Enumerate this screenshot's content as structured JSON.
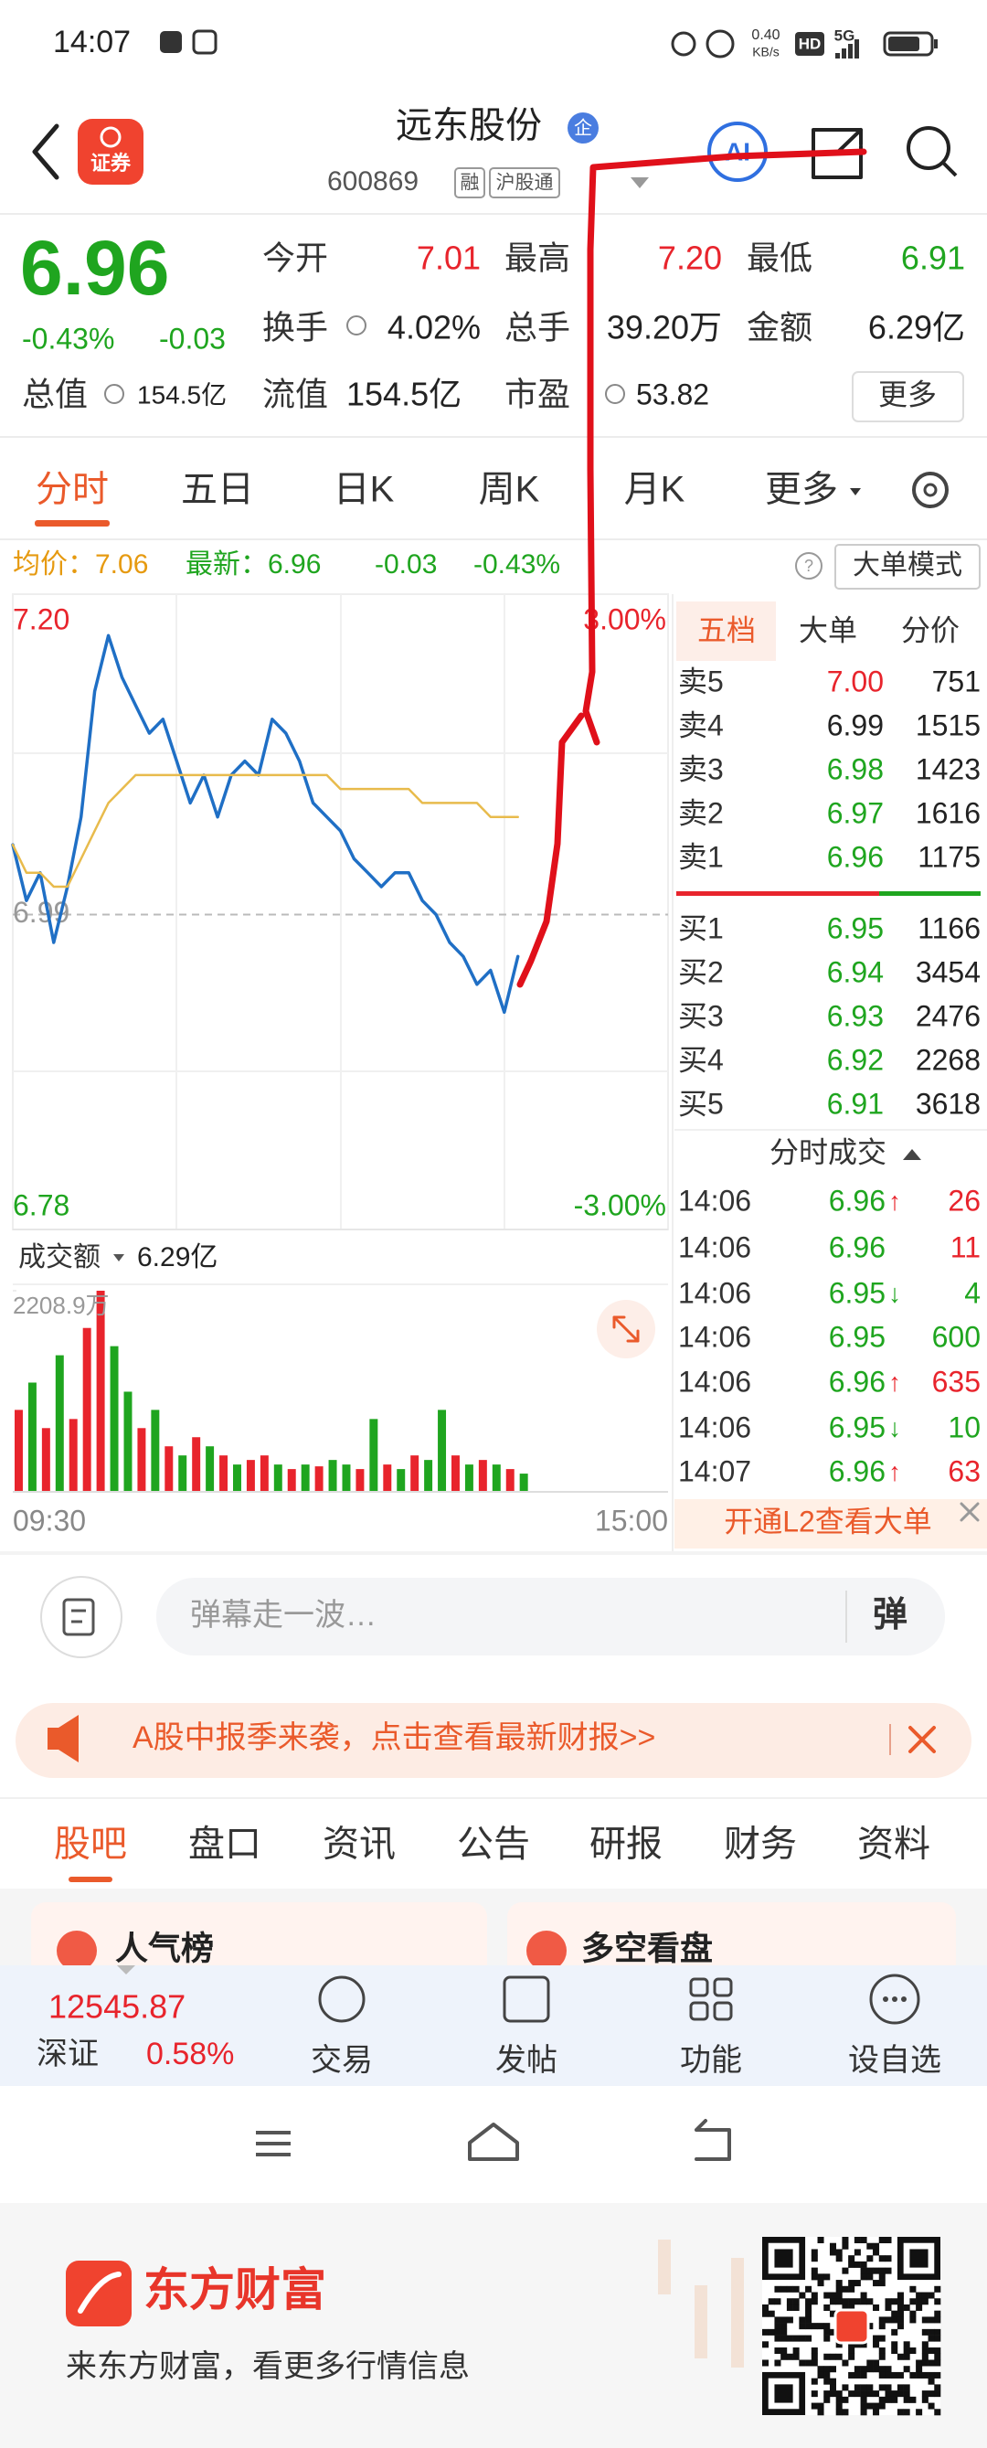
{
  "status_bar": {
    "time": "14:07",
    "speed_value": "0.40",
    "speed_unit": "KB/s",
    "hd": "HD",
    "network": "5G"
  },
  "header": {
    "logo_text": "证券",
    "title": "远东股份",
    "badge": "企",
    "code": "600869",
    "tags": [
      "融",
      "沪股通"
    ]
  },
  "quote": {
    "price": "6.96",
    "change_pct": "-0.43%",
    "change": "-0.03",
    "stats": [
      {
        "label": "今开",
        "value": "7.01"
      },
      {
        "label": "最高",
        "value": "7.20"
      },
      {
        "label": "最低",
        "value": "6.91"
      },
      {
        "label": "换手",
        "value": "4.02%"
      },
      {
        "label": "总手",
        "value": "39.20万"
      },
      {
        "label": "金额",
        "value": "6.29亿"
      },
      {
        "label": "总值",
        "value": "154.5亿"
      },
      {
        "label": "流值",
        "value": "154.5亿"
      },
      {
        "label": "市盈",
        "value": "53.82"
      }
    ],
    "more": "更多"
  },
  "tabs": [
    "分时",
    "五日",
    "日K",
    "周K",
    "月K",
    "更多"
  ],
  "summary": {
    "avg": "均价：7.06",
    "latest": "最新：6.96",
    "change": "-0.03",
    "change_pct": "-0.43%",
    "mode": "大单模式"
  },
  "chart_data": [
    {
      "type": "line",
      "ylim": [
        6.78,
        7.2
      ],
      "yticks": [
        {
          "value": 7.2,
          "label": "7.20"
        },
        {
          "value": 6.99,
          "label": "6.99"
        },
        {
          "value": 6.78,
          "label": "6.78"
        }
      ],
      "y2lim": [
        -3,
        3
      ],
      "y2ticks": [
        {
          "value": 3,
          "label": "3.00%"
        },
        {
          "value": -3,
          "label": "-3.00%"
        }
      ],
      "xticks": [
        "09:30",
        "15:00"
      ],
      "series": [
        {
          "color": "#1f6fc5",
          "values": [
            7.04,
            7.0,
            7.02,
            6.97,
            7.01,
            7.06,
            7.15,
            7.19,
            7.16,
            7.14,
            7.12,
            7.13,
            7.1,
            7.07,
            7.09,
            7.06,
            7.09,
            7.1,
            7.09,
            7.13,
            7.12,
            7.1,
            7.07,
            7.06,
            7.05,
            7.03,
            7.02,
            7.01,
            7.02,
            7.02,
            7.0,
            6.99,
            6.97,
            6.96,
            6.94,
            6.95,
            6.92,
            6.96
          ]
        },
        {
          "color": "#e8bb4c",
          "values": [
            7.04,
            7.02,
            7.02,
            7.01,
            7.01,
            7.03,
            7.05,
            7.07,
            7.08,
            7.09,
            7.09,
            7.09,
            7.09,
            7.09,
            7.09,
            7.09,
            7.09,
            7.09,
            7.09,
            7.09,
            7.09,
            7.09,
            7.09,
            7.09,
            7.08,
            7.08,
            7.08,
            7.08,
            7.08,
            7.08,
            7.07,
            7.07,
            7.07,
            7.07,
            7.07,
            7.06,
            7.06,
            7.06
          ]
        }
      ]
    },
    {
      "type": "bar",
      "label": "成交额",
      "total": "6.29亿",
      "ylim": [
        0,
        2208.9
      ],
      "yticks": [
        {
          "value": 2208.9,
          "label": "2208.9万"
        }
      ],
      "values": [
        900,
        1200,
        700,
        1500,
        800,
        1800,
        2208.9,
        1600,
        1100,
        700,
        900,
        500,
        400,
        600,
        500,
        400,
        300,
        350,
        400,
        300,
        250,
        300,
        280,
        350,
        300,
        250,
        800,
        300,
        250,
        400,
        350,
        900,
        400,
        300,
        350,
        300,
        250,
        200
      ],
      "colors": [
        "#e8242c",
        "#1fa51f",
        "#e8242c",
        "#1fa51f",
        "#e8242c",
        "#e8242c",
        "#e8242c",
        "#1fa51f",
        "#1fa51f",
        "#e8242c",
        "#1fa51f",
        "#e8242c",
        "#1fa51f",
        "#e8242c",
        "#1fa51f",
        "#e8242c",
        "#1fa51f",
        "#e8242c",
        "#e8242c",
        "#1fa51f",
        "#e8242c",
        "#1fa51f",
        "#e8242c",
        "#1fa51f",
        "#1fa51f",
        "#e8242c",
        "#1fa51f",
        "#e8242c",
        "#1fa51f",
        "#e8242c",
        "#1fa51f",
        "#1fa51f",
        "#e8242c",
        "#1fa51f",
        "#e8242c",
        "#1fa51f",
        "#e8242c",
        "#1fa51f"
      ]
    }
  ],
  "orderbook": {
    "tabs": [
      "五档",
      "大单",
      "分价"
    ],
    "asks": [
      {
        "label": "卖5",
        "price": "7.00",
        "volume": "751"
      },
      {
        "label": "卖4",
        "price": "6.99",
        "volume": "1515"
      },
      {
        "label": "卖3",
        "price": "6.98",
        "volume": "1423"
      },
      {
        "label": "卖2",
        "price": "6.97",
        "volume": "1616"
      },
      {
        "label": "卖1",
        "price": "6.96",
        "volume": "1175"
      }
    ],
    "bids": [
      {
        "label": "买1",
        "price": "6.95",
        "volume": "1166"
      },
      {
        "label": "买2",
        "price": "6.94",
        "volume": "3454"
      },
      {
        "label": "买3",
        "price": "6.93",
        "volume": "2476"
      },
      {
        "label": "买4",
        "price": "6.92",
        "volume": "2268"
      },
      {
        "label": "买5",
        "price": "6.91",
        "volume": "3618"
      }
    ],
    "trades_title": "分时成交",
    "trades": [
      {
        "time": "14:06",
        "price": "6.96",
        "dir": "↑",
        "volume": "26",
        "volume_color": "#e8242c"
      },
      {
        "time": "14:06",
        "price": "6.96",
        "volume": "11",
        "volume_color": "#e8242c"
      },
      {
        "time": "14:06",
        "price": "6.95",
        "dir": "↓",
        "volume": "4",
        "volume_color": "#1fa51f"
      },
      {
        "time": "14:06",
        "price": "6.95",
        "volume": "600",
        "volume_color": "#1fa51f"
      },
      {
        "time": "14:06",
        "price": "6.96",
        "dir": "↑",
        "volume": "635",
        "volume_color": "#e8242c"
      },
      {
        "time": "14:06",
        "price": "6.95",
        "dir": "↓",
        "volume": "10",
        "volume_color": "#1fa51f"
      },
      {
        "time": "14:07",
        "price": "6.96",
        "dir": "↑",
        "volume": "63",
        "volume_color": "#e8242c"
      }
    ],
    "l2": "开通L2查看大单"
  },
  "comment": {
    "placeholder": "弹幕走一波…",
    "button": "弹"
  },
  "banner": {
    "text": "A股中报季来袭，点击查看最新财报>>"
  },
  "section_tabs": [
    "股吧",
    "盘口",
    "资讯",
    "公告",
    "研报",
    "财务",
    "资料"
  ],
  "cards": [
    "人气榜",
    "多空看盘"
  ],
  "bottom_nav": {
    "index_value": "12545.87",
    "index_name": "深证",
    "index_change": "0.58%",
    "items": [
      "交易",
      "发帖",
      "功能",
      "设自选"
    ]
  },
  "footer": {
    "brand": "东方财富",
    "slogan": "来东方财富，看更多行情信息"
  }
}
